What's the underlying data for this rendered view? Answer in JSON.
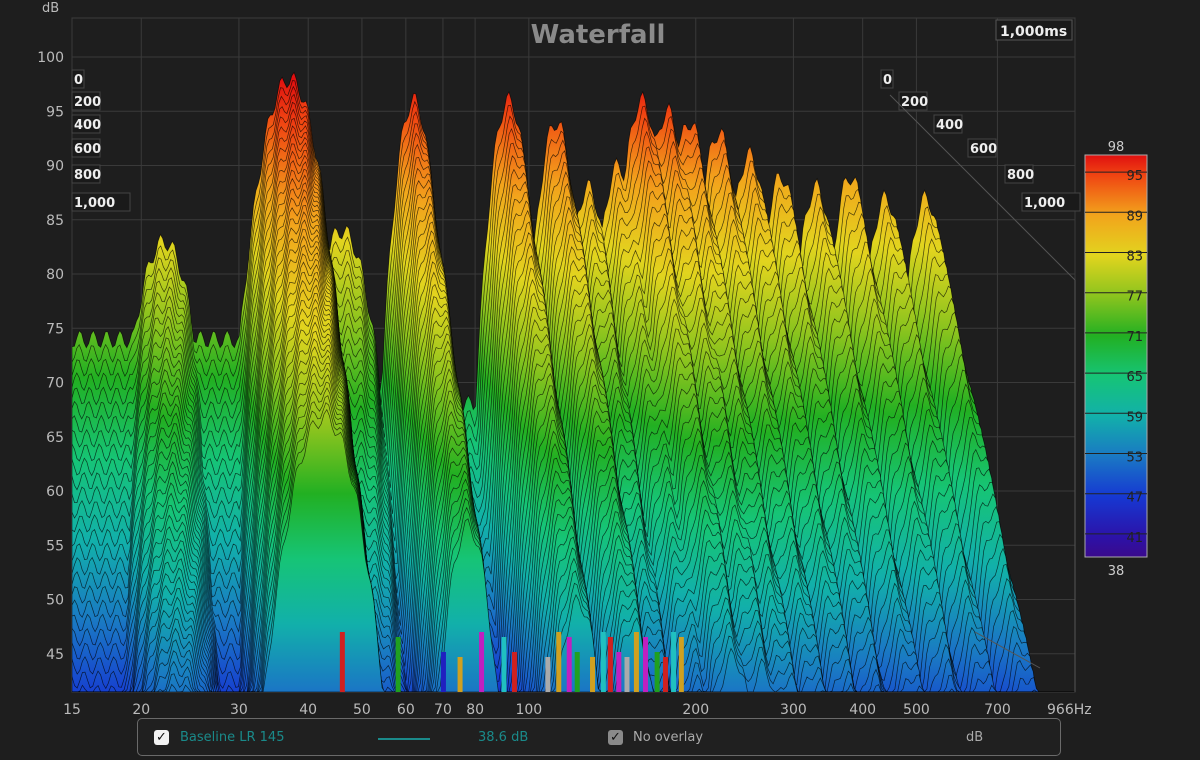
{
  "chart_data": {
    "type": "waterfall",
    "title": "Waterfall",
    "ylabel": "dB",
    "xunit": "Hz",
    "time_label": "1,000ms",
    "xscale": "log",
    "xlim": [
      15,
      966
    ],
    "ylim": [
      42,
      102
    ],
    "x_ticks": [
      "15",
      "20",
      "30",
      "40",
      "50",
      "60",
      "70",
      "80",
      "100",
      "200",
      "300",
      "400",
      "500",
      "700",
      "966Hz"
    ],
    "x_tick_values": [
      15,
      20,
      30,
      40,
      50,
      60,
      70,
      80,
      100,
      200,
      300,
      400,
      500,
      700,
      966
    ],
    "y_ticks": [
      100,
      95,
      90,
      85,
      80,
      75,
      70,
      65,
      60,
      55,
      50,
      45
    ],
    "time_ticks": [
      "0",
      "200",
      "400",
      "600",
      "800",
      "1,000"
    ],
    "time_range_ms": [
      0,
      1000
    ],
    "grid": true,
    "colorbar": {
      "min": 38,
      "max": 98,
      "ticks": [
        95,
        89,
        83,
        77,
        71,
        65,
        59,
        53,
        47,
        41
      ],
      "stops": [
        {
          "db": 38,
          "color": "#3a0a8c"
        },
        {
          "db": 41,
          "color": "#2c12a8"
        },
        {
          "db": 47,
          "color": "#1638d2"
        },
        {
          "db": 53,
          "color": "#1a78c4"
        },
        {
          "db": 59,
          "color": "#12b0aa"
        },
        {
          "db": 65,
          "color": "#16c476"
        },
        {
          "db": 71,
          "color": "#22b022"
        },
        {
          "db": 77,
          "color": "#8cc41e"
        },
        {
          "db": 83,
          "color": "#e2d41e"
        },
        {
          "db": 89,
          "color": "#f2a41c"
        },
        {
          "db": 95,
          "color": "#f04412"
        },
        {
          "db": 98,
          "color": "#e01010"
        }
      ]
    },
    "peaks_t0": [
      {
        "hz": 22,
        "db": 83,
        "decay_db_per_s": 30
      },
      {
        "hz": 37,
        "db": 98,
        "decay_db_per_s": 20
      },
      {
        "hz": 46,
        "db": 84,
        "decay_db_per_s": 40
      },
      {
        "hz": 62,
        "db": 96,
        "decay_db_per_s": 28
      },
      {
        "hz": 92,
        "db": 96,
        "decay_db_per_s": 35
      },
      {
        "hz": 112,
        "db": 94,
        "decay_db_per_s": 35
      },
      {
        "hz": 128,
        "db": 88,
        "decay_db_per_s": 40
      },
      {
        "hz": 145,
        "db": 90,
        "decay_db_per_s": 40
      },
      {
        "hz": 160,
        "db": 96,
        "decay_db_per_s": 40
      },
      {
        "hz": 178,
        "db": 95,
        "decay_db_per_s": 40
      },
      {
        "hz": 195,
        "db": 94,
        "decay_db_per_s": 40
      },
      {
        "hz": 220,
        "db": 93,
        "decay_db_per_s": 42
      },
      {
        "hz": 250,
        "db": 91,
        "decay_db_per_s": 42
      },
      {
        "hz": 285,
        "db": 89,
        "decay_db_per_s": 44
      },
      {
        "hz": 330,
        "db": 88,
        "decay_db_per_s": 44
      },
      {
        "hz": 380,
        "db": 89,
        "decay_db_per_s": 46
      },
      {
        "hz": 440,
        "db": 87,
        "decay_db_per_s": 46
      },
      {
        "hz": 520,
        "db": 87,
        "decay_db_per_s": 48
      }
    ],
    "markers": [
      {
        "hz": 46,
        "color": "#d02020"
      },
      {
        "hz": 58,
        "color": "#20a020"
      },
      {
        "hz": 70,
        "color": "#2020c0"
      },
      {
        "hz": 75,
        "color": "#d0a020"
      },
      {
        "hz": 82,
        "color": "#c020c0"
      },
      {
        "hz": 90,
        "color": "#20c0c0"
      },
      {
        "hz": 94,
        "color": "#d02020"
      },
      {
        "hz": 108,
        "color": "#aaaaaa"
      },
      {
        "hz": 113,
        "color": "#d0a020"
      },
      {
        "hz": 118,
        "color": "#c020c0"
      },
      {
        "hz": 122,
        "color": "#20a020"
      },
      {
        "hz": 130,
        "color": "#d0a020"
      },
      {
        "hz": 136,
        "color": "#20c0c0"
      },
      {
        "hz": 140,
        "color": "#d02020"
      },
      {
        "hz": 145,
        "color": "#c020c0"
      },
      {
        "hz": 150,
        "color": "#aaaaaa"
      },
      {
        "hz": 156,
        "color": "#d0a020"
      },
      {
        "hz": 162,
        "color": "#c020c0"
      },
      {
        "hz": 170,
        "color": "#20a020"
      },
      {
        "hz": 176,
        "color": "#d02020"
      },
      {
        "hz": 182,
        "color": "#20c0c0"
      },
      {
        "hz": 188,
        "color": "#d0a020"
      }
    ]
  },
  "legend": {
    "trace_name": "Baseline LR 145",
    "trace_color": "#1a8a8a",
    "trace_value": "38.6 dB",
    "overlay_label": "No overlay",
    "unit": "dB"
  }
}
